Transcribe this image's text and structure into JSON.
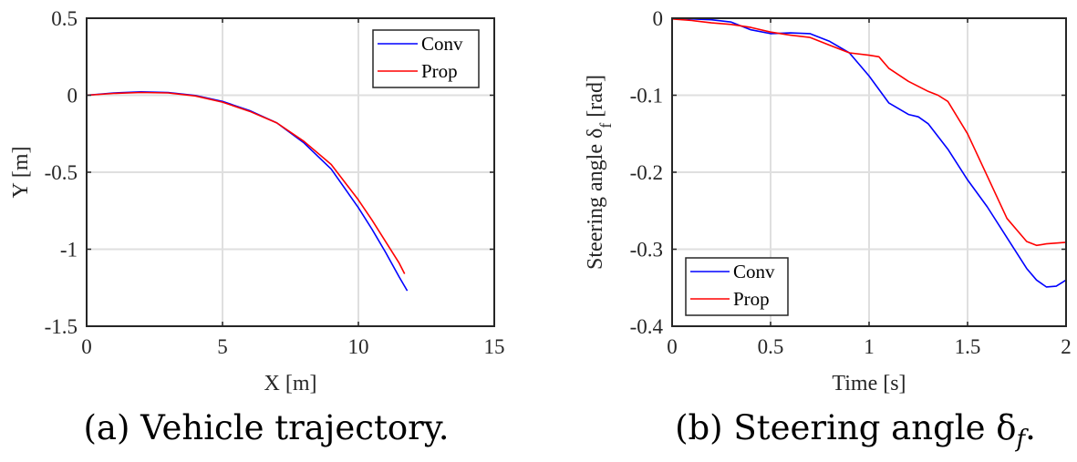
{
  "colors": {
    "conv": "#0000ff",
    "prop": "#ff0000"
  },
  "chart_data": [
    {
      "type": "line",
      "xlabel": "X [m]",
      "ylabel": "Y [m]",
      "xlim": [
        0,
        15
      ],
      "ylim": [
        -1.5,
        0.5
      ],
      "xticks": [
        0,
        5,
        10,
        15
      ],
      "yticks": [
        0.5,
        0,
        -0.5,
        -1,
        -1.5
      ],
      "xtick_labels": [
        "0",
        "5",
        "10",
        "15"
      ],
      "ytick_labels": [
        "0.5",
        "0",
        "-0.5",
        "-1",
        "-1.5"
      ],
      "grid": true,
      "legend_position": "top-right",
      "caption": "(a) Vehicle trajectory.",
      "series": [
        {
          "name": "Conv",
          "x": [
            0,
            1,
            2,
            3,
            4,
            5,
            6,
            7,
            8,
            9,
            10,
            10.5,
            11,
            11.5,
            11.8
          ],
          "y": [
            0,
            0.015,
            0.022,
            0.018,
            -0.002,
            -0.04,
            -0.1,
            -0.18,
            -0.31,
            -0.48,
            -0.73,
            -0.87,
            -1.02,
            -1.18,
            -1.27
          ]
        },
        {
          "name": "Prop",
          "x": [
            0,
            1,
            2,
            3,
            4,
            5,
            6,
            7,
            8,
            9,
            10,
            10.5,
            11,
            11.5,
            11.7
          ],
          "y": [
            0,
            0.012,
            0.018,
            0.015,
            -0.005,
            -0.045,
            -0.105,
            -0.18,
            -0.3,
            -0.45,
            -0.68,
            -0.81,
            -0.95,
            -1.09,
            -1.16
          ]
        }
      ]
    },
    {
      "type": "line",
      "xlabel": "Time [s]",
      "ylabel": "Steering angle δ",
      "ylabel_sub": "f",
      "ylabel_unit": " [rad]",
      "xlim": [
        0,
        2
      ],
      "ylim": [
        -0.4,
        0
      ],
      "xticks": [
        0,
        0.5,
        1,
        1.5,
        2
      ],
      "yticks": [
        0,
        -0.1,
        -0.2,
        -0.3,
        -0.4
      ],
      "xtick_labels": [
        "0",
        "0.5",
        "1",
        "1.5",
        "2"
      ],
      "ytick_labels": [
        "0",
        "-0.1",
        "-0.2",
        "-0.3",
        "-0.4"
      ],
      "grid": true,
      "legend_position": "bottom-left",
      "caption": "(b) Steering angle δ",
      "caption_sub": "f",
      "caption_end": ".",
      "series": [
        {
          "name": "Conv",
          "x": [
            0,
            0.1,
            0.2,
            0.3,
            0.4,
            0.5,
            0.6,
            0.7,
            0.8,
            0.9,
            1.0,
            1.1,
            1.2,
            1.25,
            1.3,
            1.4,
            1.5,
            1.6,
            1.7,
            1.8,
            1.85,
            1.9,
            1.95,
            2.0
          ],
          "y": [
            0,
            -0.001,
            -0.002,
            -0.005,
            -0.015,
            -0.02,
            -0.019,
            -0.02,
            -0.03,
            -0.045,
            -0.075,
            -0.11,
            -0.125,
            -0.128,
            -0.137,
            -0.17,
            -0.21,
            -0.245,
            -0.285,
            -0.325,
            -0.34,
            -0.349,
            -0.348,
            -0.34
          ]
        },
        {
          "name": "Prop",
          "x": [
            0,
            0.1,
            0.2,
            0.3,
            0.4,
            0.5,
            0.6,
            0.7,
            0.8,
            0.9,
            1.0,
            1.05,
            1.1,
            1.2,
            1.3,
            1.35,
            1.4,
            1.5,
            1.6,
            1.7,
            1.8,
            1.85,
            1.9,
            2.0
          ],
          "y": [
            -0.001,
            -0.003,
            -0.006,
            -0.008,
            -0.012,
            -0.018,
            -0.022,
            -0.025,
            -0.035,
            -0.045,
            -0.048,
            -0.05,
            -0.065,
            -0.082,
            -0.095,
            -0.1,
            -0.108,
            -0.15,
            -0.205,
            -0.26,
            -0.29,
            -0.295,
            -0.293,
            -0.291
          ]
        }
      ]
    }
  ]
}
